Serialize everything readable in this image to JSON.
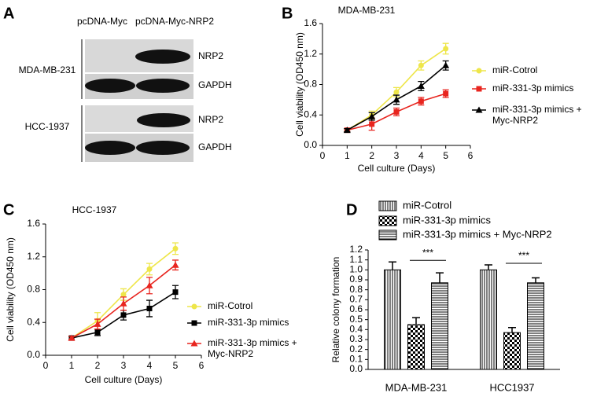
{
  "blot": {
    "panel": "A",
    "columns": [
      "pcDNA-Myc",
      "pcDNA-Myc-NRP2"
    ],
    "groups": [
      {
        "cell_line": "MDA-MB-231",
        "bands": [
          "NRP2",
          "GAPDH"
        ]
      },
      {
        "cell_line": "HCC-1937",
        "bands": [
          "NRP2",
          "GAPDH"
        ]
      }
    ]
  },
  "chart_data": [
    {
      "type": "line",
      "panel": "B",
      "title": "MDA-MB-231",
      "x_label": "Cell culture (Days)",
      "y_label": "Cell viability (OD450 nm)",
      "x": [
        1,
        2,
        3,
        4,
        5
      ],
      "xlim": [
        0,
        6
      ],
      "xticks": [
        0,
        1,
        2,
        3,
        4,
        5,
        6
      ],
      "ylim": [
        0,
        1.6
      ],
      "yticks": [
        {
          "value": 0,
          "label": "0.0"
        },
        0.4,
        0.8,
        1.2,
        1.6
      ],
      "legend": "right",
      "series": [
        {
          "name": "miR-Cotrol",
          "color": "#eee64a",
          "marker": "circle",
          "values": [
            0.2,
            0.4,
            0.7,
            1.05,
            1.27
          ],
          "errors": [
            0.02,
            0.05,
            0.06,
            0.06,
            0.07
          ]
        },
        {
          "name": "miR-331-3p mimics",
          "color": "#e8251f",
          "marker": "square",
          "values": [
            0.2,
            0.28,
            0.44,
            0.58,
            0.68
          ],
          "errors": [
            0.02,
            0.08,
            0.05,
            0.05,
            0.05
          ]
        },
        {
          "name": "miR-331-3p mimics + Myc-NRP2",
          "color": "#000000",
          "marker": "triangle",
          "values": [
            0.2,
            0.38,
            0.6,
            0.78,
            1.05
          ],
          "errors": [
            0.02,
            0.05,
            0.06,
            0.06,
            0.06
          ]
        }
      ]
    },
    {
      "type": "line",
      "panel": "C",
      "title": "HCC-1937",
      "x_label": "Cell culture (Days)",
      "y_label": "Cell viability (OD450 nm)",
      "x": [
        1,
        2,
        3,
        4,
        5
      ],
      "xlim": [
        0,
        6
      ],
      "xticks": [
        0,
        1,
        2,
        3,
        4,
        5,
        6
      ],
      "ylim": [
        0,
        1.6
      ],
      "yticks": [
        {
          "value": 0,
          "label": "0.0"
        },
        0.4,
        0.8,
        1.2,
        1.6
      ],
      "legend": "lower right",
      "series": [
        {
          "name": "miR-Cotrol",
          "color": "#eee64a",
          "marker": "circle",
          "values": [
            0.21,
            0.42,
            0.74,
            1.05,
            1.3
          ],
          "errors": [
            0.02,
            0.1,
            0.07,
            0.07,
            0.07
          ]
        },
        {
          "name": "miR-331-3p mimics",
          "color": "#000000",
          "marker": "square",
          "values": [
            0.21,
            0.28,
            0.49,
            0.57,
            0.77
          ],
          "errors": [
            0.02,
            0.04,
            0.06,
            0.1,
            0.08
          ]
        },
        {
          "name": "miR-331-3p mimics + Myc-NRP2",
          "color": "#e8251f",
          "marker": "triangle",
          "values": [
            0.21,
            0.38,
            0.63,
            0.85,
            1.1
          ],
          "errors": [
            0.02,
            0.06,
            0.08,
            0.1,
            0.06
          ]
        }
      ]
    },
    {
      "type": "bar",
      "panel": "D",
      "y_label": "Relative colony formation",
      "categories": [
        "MDA-MB-231",
        "HCC1937"
      ],
      "ylim": [
        0,
        1.2
      ],
      "yticks": [
        {
          "value": 0,
          "label": "0.0"
        },
        0.1,
        0.2,
        0.3,
        0.4,
        0.5,
        0.6,
        0.7,
        0.8,
        0.9,
        {
          "value": 1,
          "label": "1.0"
        },
        1.1,
        1.2
      ],
      "legend": "top",
      "series": [
        {
          "name": "miR-Cotrol",
          "color": "#000000",
          "pattern": "vertical",
          "values": [
            1.0,
            1.0
          ],
          "errors": [
            0.08,
            0.05
          ]
        },
        {
          "name": "miR-331-3p mimics",
          "color": "#000000",
          "pattern": "checker",
          "values": [
            0.45,
            0.37
          ],
          "errors": [
            0.07,
            0.05
          ]
        },
        {
          "name": "miR-331-3p mimics + Myc-NRP2",
          "color": "#000000",
          "pattern": "horizontal",
          "values": [
            0.87,
            0.87
          ],
          "errors": [
            0.1,
            0.05
          ]
        }
      ],
      "annotations": [
        "***",
        "***"
      ]
    }
  ]
}
